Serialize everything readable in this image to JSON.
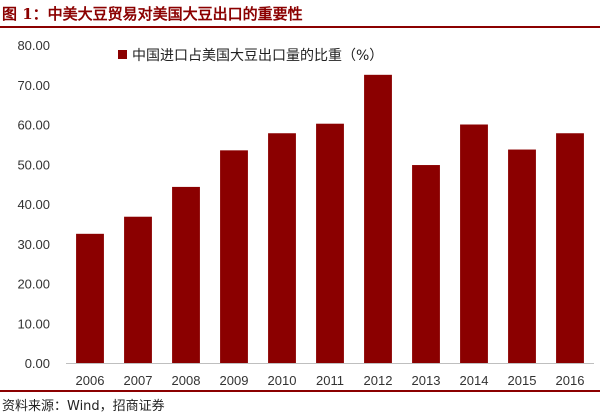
{
  "header": {
    "title": "图 1：中美大豆贸易对美国大豆出口的重要性"
  },
  "footer": {
    "source": "资料来源：Wind，招商证券"
  },
  "colors": {
    "bar": "#8B0000",
    "accent": "#8B0000"
  },
  "chart_data": {
    "type": "bar",
    "categories": [
      "2006",
      "2007",
      "2008",
      "2009",
      "2010",
      "2011",
      "2012",
      "2013",
      "2014",
      "2015",
      "2016"
    ],
    "series": [
      {
        "name": "中国进口占美国大豆出口量的比重（%）",
        "values": [
          32.5,
          36.8,
          44.3,
          53.5,
          57.8,
          60.2,
          72.5,
          49.8,
          60.0,
          53.7,
          57.8
        ]
      }
    ],
    "ylim": [
      0,
      80
    ],
    "yticks": [
      "0.00",
      "10.00",
      "20.00",
      "30.00",
      "40.00",
      "50.00",
      "60.00",
      "70.00",
      "80.00"
    ],
    "legend_position": "top-left",
    "grid": false
  }
}
